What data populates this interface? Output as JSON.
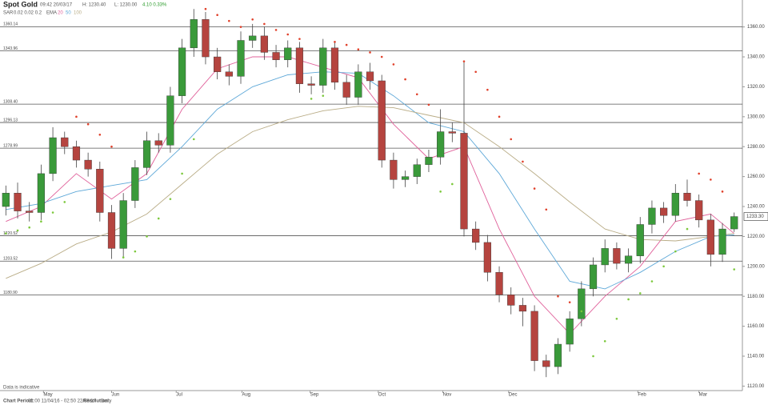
{
  "chart_data": {
    "type": "candlestick",
    "title": "Spot Gold",
    "timestamp": "09:42 20/03/17",
    "high_text": "H: 1230.40",
    "low_text": "L: 1230.00",
    "change_text": "4.10 0.33%",
    "sar_text": "SAR",
    "sar_params": "0.02 0.02 0.2",
    "ema_text": "EMA",
    "ema_params": [
      "20",
      "50",
      "100"
    ],
    "footer_period_label": "Chart Period:",
    "footer_period": "01:00 11/04/16 - 02:50 22/03/17",
    "footer_resolution_label": "Resolution:",
    "footer_resolution": "Daily",
    "note": "Data is indicative",
    "last_label": "1233.30",
    "up_color": "#3a9a3a",
    "down_color": "#b5443f",
    "xlim": [
      -0.5,
      62.7
    ],
    "ylim": [
      1117,
      1378
    ],
    "xticks": [
      {
        "value": 3.2,
        "label": "May"
      },
      {
        "value": 9.0,
        "label": "Jun"
      },
      {
        "value": 14.5,
        "label": "Jul"
      },
      {
        "value": 20.1,
        "label": "Aug"
      },
      {
        "value": 25.9,
        "label": "Sep"
      },
      {
        "value": 31.7,
        "label": "Oct"
      },
      {
        "value": 37.2,
        "label": "Nov"
      },
      {
        "value": 42.8,
        "label": "Dec"
      },
      {
        "value": 53.8,
        "label": "Feb"
      },
      {
        "value": 59.0,
        "label": "Mar"
      }
    ],
    "yticks": [
      {
        "value": 1120,
        "label": "1120.00"
      },
      {
        "value": 1140,
        "label": "1140.00"
      },
      {
        "value": 1160,
        "label": "1160.00"
      },
      {
        "value": 1180,
        "label": "1180.00"
      },
      {
        "value": 1200,
        "label": "1200.00"
      },
      {
        "value": 1220,
        "label": "1220.00"
      },
      {
        "value": 1240,
        "label": "1240.00"
      },
      {
        "value": 1260,
        "label": "1260.00"
      },
      {
        "value": 1280,
        "label": "1280.00"
      },
      {
        "value": 1300,
        "label": "1300.00"
      },
      {
        "value": 1320,
        "label": "1320.00"
      },
      {
        "value": 1340,
        "label": "1340.00"
      },
      {
        "value": 1360,
        "label": "1360.00"
      }
    ],
    "levels": [
      {
        "value": 1360.14,
        "label": "1360.14"
      },
      {
        "value": 1343.96,
        "label": "1343.96"
      },
      {
        "value": 1308.4,
        "label": "1308.40"
      },
      {
        "value": 1296.13,
        "label": "1296.13"
      },
      {
        "value": 1278.99,
        "label": "1278.99"
      },
      {
        "value": 1220.52,
        "label": "1220.52"
      },
      {
        "value": 1203.52,
        "label": "1203.52"
      },
      {
        "value": 1180.9,
        "label": "1180.90"
      }
    ],
    "open": [
      1240,
      1249,
      1237,
      1236,
      1262,
      1286,
      1280,
      1271,
      1265,
      1236,
      1212,
      1244,
      1266,
      1284,
      1281,
      1314,
      1346,
      1365,
      1340,
      1330,
      1327,
      1351,
      1354,
      1343,
      1338,
      1346,
      1322,
      1321,
      1346,
      1323,
      1313,
      1330,
      1324,
      1271,
      1258,
      1260,
      1268,
      1273,
      1290,
      1289,
      1225,
      1216,
      1196,
      1181,
      1174,
      1170,
      1137,
      1133,
      1148,
      1165,
      1185,
      1201,
      1212,
      1202,
      1207,
      1228,
      1239,
      1234,
      1249,
      1244,
      1231,
      1208,
      1225
    ],
    "high": [
      1254,
      1256,
      1243,
      1268,
      1293,
      1290,
      1284,
      1276,
      1270,
      1241,
      1249,
      1271,
      1290,
      1289,
      1320,
      1352,
      1372,
      1370,
      1346,
      1335,
      1357,
      1362,
      1360,
      1348,
      1351,
      1350,
      1327,
      1352,
      1350,
      1328,
      1335,
      1336,
      1328,
      1276,
      1264,
      1272,
      1278,
      1305,
      1296,
      1337,
      1230,
      1221,
      1200,
      1186,
      1179,
      1174,
      1141,
      1152,
      1170,
      1190,
      1206,
      1218,
      1216,
      1212,
      1233,
      1244,
      1243,
      1255,
      1258,
      1248,
      1235,
      1229,
      1236
    ],
    "low": [
      1234,
      1232,
      1230,
      1231,
      1257,
      1275,
      1266,
      1260,
      1230,
      1205,
      1206,
      1239,
      1261,
      1276,
      1276,
      1309,
      1340,
      1335,
      1325,
      1321,
      1322,
      1346,
      1338,
      1333,
      1333,
      1316,
      1315,
      1316,
      1318,
      1308,
      1308,
      1318,
      1266,
      1252,
      1253,
      1255,
      1263,
      1268,
      1283,
      1220,
      1211,
      1190,
      1176,
      1168,
      1160,
      1130,
      1126,
      1128,
      1143,
      1160,
      1180,
      1196,
      1198,
      1196,
      1202,
      1222,
      1229,
      1230,
      1240,
      1226,
      1200,
      1203,
      1223
    ],
    "close": [
      1249,
      1237,
      1236,
      1262,
      1286,
      1280,
      1271,
      1265,
      1236,
      1212,
      1244,
      1266,
      1284,
      1281,
      1314,
      1346,
      1365,
      1340,
      1330,
      1327,
      1351,
      1354,
      1343,
      1338,
      1346,
      1322,
      1321,
      1346,
      1323,
      1313,
      1330,
      1324,
      1271,
      1258,
      1260,
      1268,
      1273,
      1290,
      1289,
      1225,
      1216,
      1196,
      1181,
      1174,
      1170,
      1137,
      1133,
      1148,
      1165,
      1185,
      1201,
      1212,
      1202,
      1207,
      1228,
      1239,
      1234,
      1249,
      1244,
      1231,
      1208,
      1225,
      1233.3
    ],
    "sar": {
      "up_color": "#7cc83c",
      "down_color": "#e0402a",
      "values": [
        1222,
        1224,
        1226,
        1230,
        1236,
        1243,
        1300,
        1295,
        1288,
        1280,
        1206,
        1210,
        1220,
        1232,
        1245,
        1262,
        1285,
        1372,
        1368,
        1364,
        1360,
        1365,
        1362,
        1358,
        1355,
        1352,
        1312,
        1314,
        1350,
        1348,
        1345,
        1343,
        1340,
        1335,
        1325,
        1315,
        1308,
        1250,
        1255,
        1337,
        1330,
        1318,
        1300,
        1285,
        1270,
        1252,
        1238,
        1180,
        1176,
        1170,
        1140,
        1150,
        1165,
        1178,
        1182,
        1190,
        1200,
        1210,
        1225,
        1262,
        1258,
        1250,
        1198
      ]
    },
    "ema_x": [
      0,
      3,
      6,
      9,
      12,
      15,
      18,
      21,
      24,
      27,
      30,
      33,
      36,
      39,
      42,
      45,
      48,
      51,
      54,
      57,
      60,
      62
    ],
    "series": [
      {
        "name": "20",
        "color": "#e0609a",
        "values": [
          1230,
          1240,
          1262,
          1245,
          1262,
          1305,
          1332,
          1340,
          1340,
          1333,
          1326,
          1295,
          1272,
          1280,
          1225,
          1180,
          1155,
          1180,
          1200,
          1230,
          1235,
          1222
        ]
      },
      {
        "name": "50",
        "color": "#5ea8d8",
        "values": [
          1238,
          1242,
          1250,
          1254,
          1258,
          1280,
          1305,
          1320,
          1328,
          1330,
          1329,
          1314,
          1296,
          1290,
          1262,
          1225,
          1190,
          1185,
          1196,
          1210,
          1220,
          1221
        ]
      },
      {
        "name": "100",
        "color": "#b9ac86",
        "values": [
          1192,
          1202,
          1215,
          1223,
          1235,
          1255,
          1275,
          1290,
          1298,
          1304,
          1307,
          1306,
          1301,
          1296,
          1280,
          1262,
          1243,
          1225,
          1218,
          1217,
          1220,
          1222
        ]
      }
    ]
  }
}
